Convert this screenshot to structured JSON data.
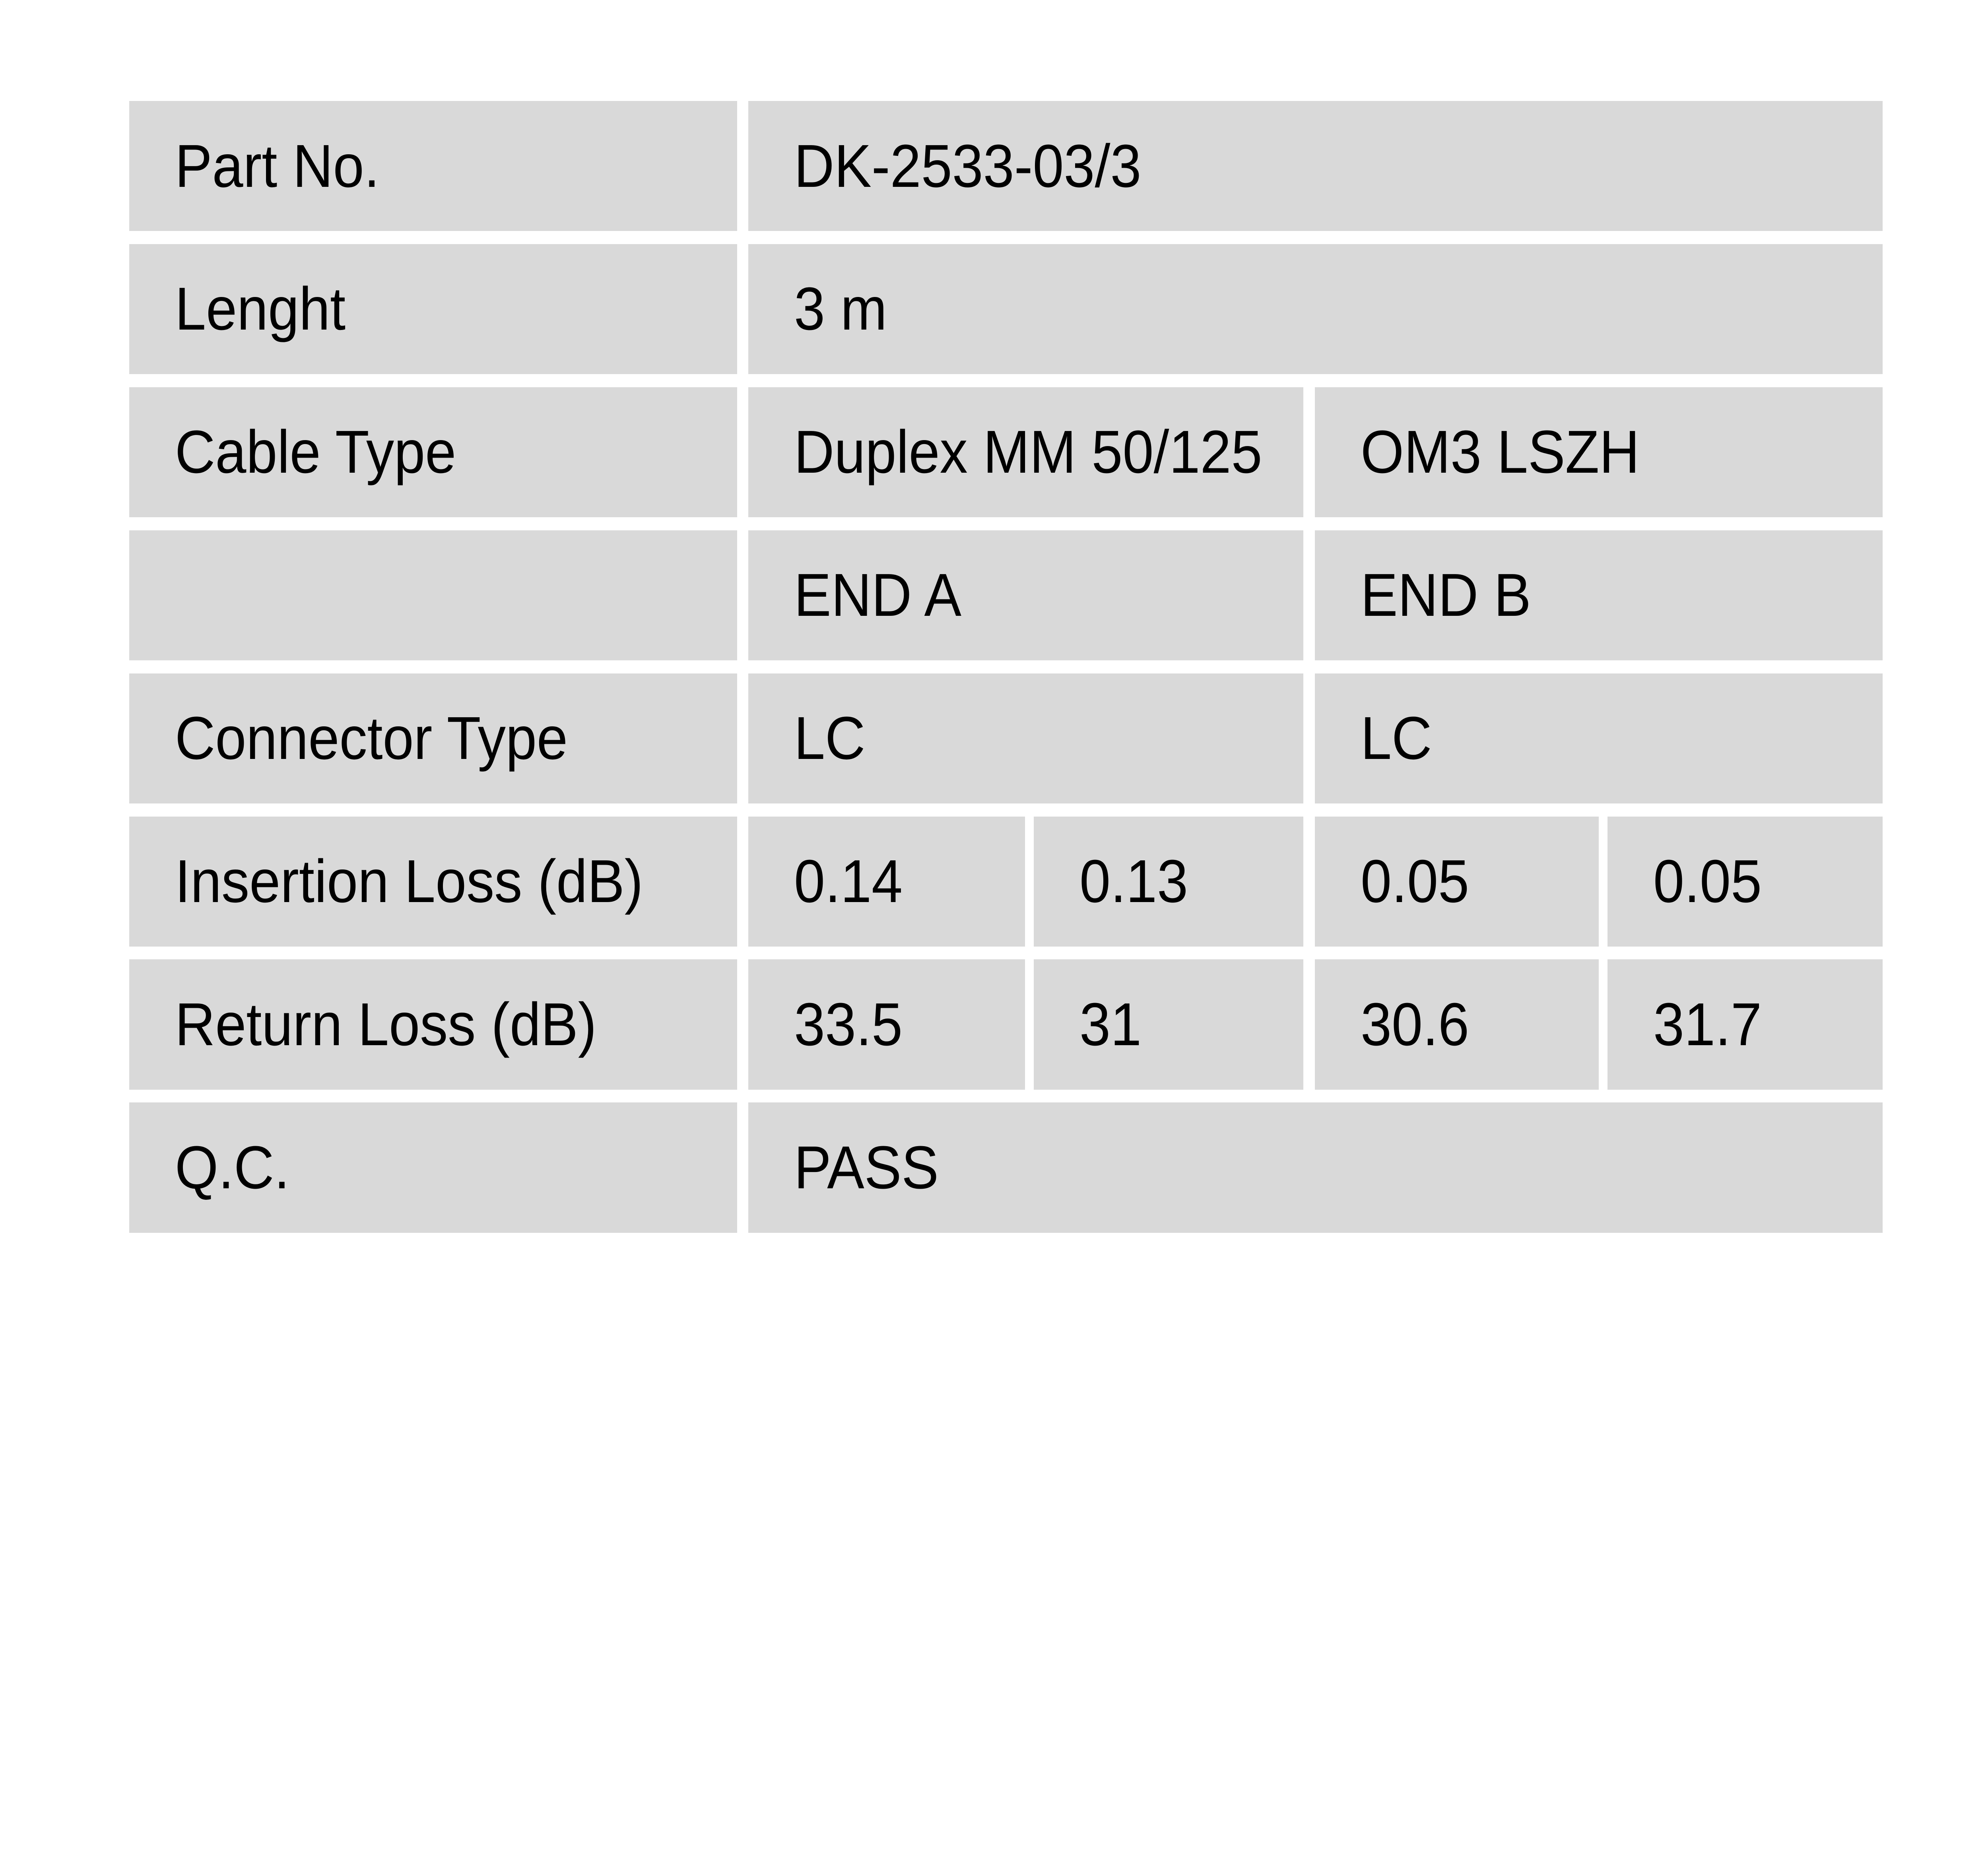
{
  "page": {
    "background": "#ffffff"
  },
  "table": {
    "cell_background": "#d9d9d9",
    "text_color": "#000000",
    "columns": {
      "end_a_header": "END A",
      "end_b_header": "END B"
    },
    "rows": {
      "part_no": {
        "label": "Part No.",
        "value": "DK-2533-03/3"
      },
      "length": {
        "label": "Lenght",
        "value": "3 m"
      },
      "cable_type": {
        "label": "Cable Type",
        "end_a": "Duplex MM 50/125",
        "end_b": "OM3 LSZH"
      },
      "ends_header": {
        "label": "",
        "end_a": "END A",
        "end_b": "END B"
      },
      "connector_type": {
        "label": "Connector Type",
        "end_a": "LC",
        "end_b": "LC"
      },
      "insertion_loss": {
        "label": "Insertion Loss (dB)",
        "end_a_1": "0.14",
        "end_a_2": "0.13",
        "end_b_1": "0.05",
        "end_b_2": "0.05"
      },
      "return_loss": {
        "label": "Return Loss (dB)",
        "end_a_1": "33.5",
        "end_a_2": "31",
        "end_b_1": "30.6",
        "end_b_2": "31.7"
      },
      "qc": {
        "label": "Q.C.",
        "value": "PASS"
      }
    }
  }
}
